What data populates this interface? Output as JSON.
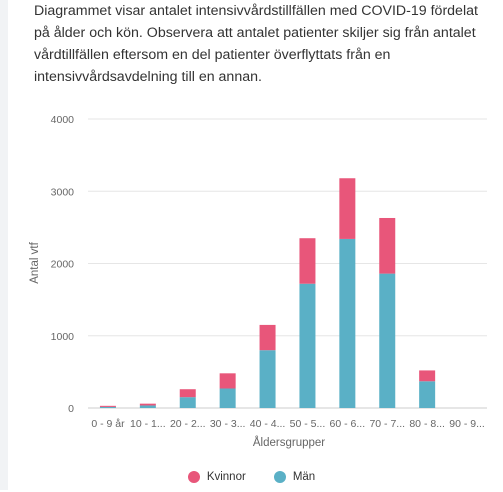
{
  "description": "Diagrammet visar antalet intensivvårdstillfällen med COVID-19 fördelat på ålder och kön. Observera att antalet patienter skiljer sig från antalet vårdtillfällen eftersom en del patienter överflyttats från en intensivvårdsavdelning till en annan.",
  "colors": {
    "kvinnor": "#e8567a",
    "man": "#5ab0c6",
    "grid": "#e6e6e6",
    "baseline": "#cccccc"
  },
  "chart_data": {
    "type": "bar",
    "stacked": true,
    "categories": [
      "0 - 9 år",
      "10 - 1...",
      "20 - 2...",
      "30 - 3...",
      "40 - 4...",
      "50 - 5...",
      "60 - 6...",
      "70 - 7...",
      "80 - 8...",
      "90 - 9..."
    ],
    "series": [
      {
        "name": "Män",
        "color": "#5ab0c6",
        "values": [
          15,
          35,
          150,
          270,
          800,
          1720,
          2340,
          1860,
          370,
          0
        ]
      },
      {
        "name": "Kvinnor",
        "color": "#e8567a",
        "values": [
          15,
          25,
          110,
          210,
          350,
          630,
          840,
          770,
          150,
          0
        ]
      }
    ],
    "xlabel": "Åldersgrupper",
    "ylabel": "Antal vtf",
    "ylim": [
      0,
      4000
    ],
    "yticks": [
      0,
      1000,
      2000,
      3000,
      4000
    ],
    "grid": true,
    "legend_position": "bottom-center"
  }
}
